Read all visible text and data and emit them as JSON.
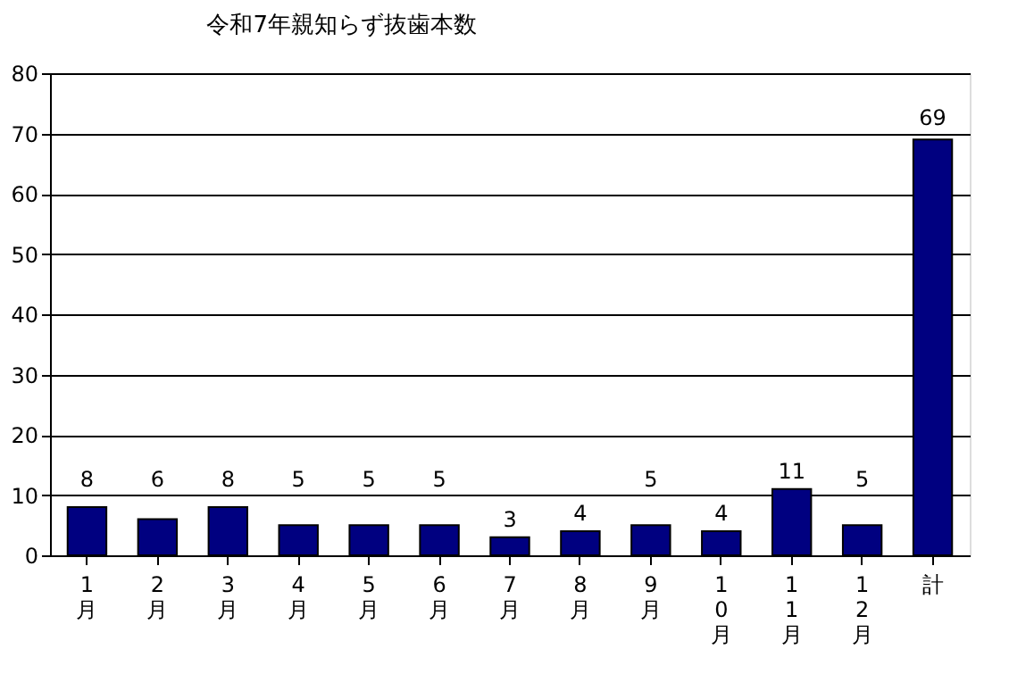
{
  "chart_data": {
    "type": "bar",
    "title": "令和7年親知らず抜歯本数",
    "categories": [
      "1月",
      "2月",
      "3月",
      "4月",
      "5月",
      "6月",
      "7月",
      "8月",
      "9月",
      "10月",
      "11月",
      "12月",
      "計"
    ],
    "series": [
      {
        "color": "#000080",
        "values": [
          8,
          6,
          8,
          5,
          5,
          5,
          3,
          4,
          5,
          4,
          11,
          5,
          69
        ]
      }
    ],
    "ylim": [
      0,
      80
    ],
    "yticks": [
      0,
      10,
      20,
      30,
      40,
      50,
      60,
      70,
      80
    ],
    "grid": "y",
    "data_labels": true
  }
}
